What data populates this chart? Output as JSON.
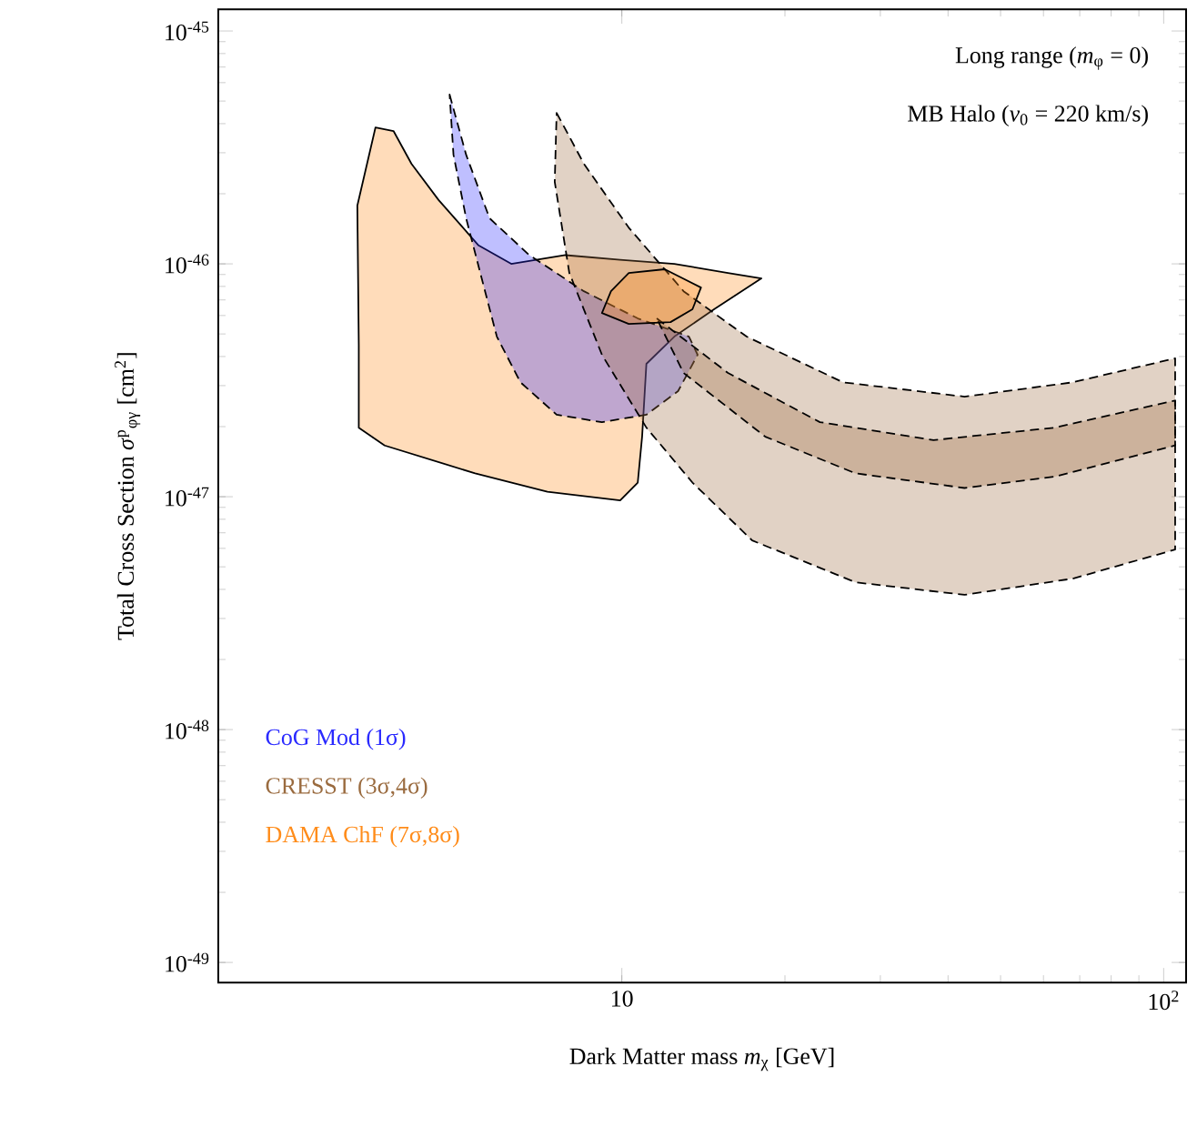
{
  "chart_data": {
    "type": "area",
    "log": "xy",
    "xlabel": "Dark Matter mass  *m*$_{χ}$  [GeV]",
    "ylabel": "Total Cross Section  *σ*$^{p}$$_{φγ}$ [cm$^{2}$]",
    "annotations": [
      "Long  range (*m*$_{φ}$ = 0)",
      "MB Halo (*v*$_{0}$ = 220 km/s)"
    ],
    "xlim": [
      1.8,
      110
    ],
    "ylim": [
      8.2e-50,
      1.24e-45
    ],
    "xticks": [
      {
        "value": 10,
        "label": "10"
      },
      {
        "value": 100,
        "label": "10$^{2}$"
      }
    ],
    "yticks": [
      {
        "value": 1e-49,
        "label": "10$^{-49}$"
      },
      {
        "value": 1e-48,
        "label": "10$^{-48}$"
      },
      {
        "value": 1e-47,
        "label": "10$^{-47}$"
      },
      {
        "value": 1e-46,
        "label": "10$^{-46}$"
      },
      {
        "value": 1e-45,
        "label": "10$^{-45}$"
      }
    ],
    "legend": "bottom left",
    "grid": false,
    "series": [
      {
        "color": "#ff8c1a",
        "line_style": "solid",
        "x": [
          3.25,
          3.51,
          3.79,
          4.09,
          4.59,
          5.44,
          6.25,
          7.87,
          9.93,
          12.5,
          15.7,
          18.1,
          14.8,
          12.5,
          11.1,
          10.9,
          10.7,
          9.93,
          7.29,
          5.36,
          3.65,
          3.27,
          3.27
        ],
        "values": [
          1.78e-46,
          3.85e-46,
          3.72e-46,
          2.69e-46,
          1.88e-46,
          1.2e-46,
          1e-46,
          1.09e-46,
          1.04e-46,
          1e-46,
          9.14e-47,
          8.66e-47,
          6.38e-47,
          4.87e-47,
          3.72e-47,
          1.81e-47,
          1.15e-47,
          9.64e-48,
          1.05e-47,
          1.26e-47,
          1.66e-47,
          1.98e-47,
          4.45e-47
        ]
      },
      {
        "name": "CoG Mod  (1σ)",
        "color": "#2a2aff",
        "line_style": "dashed",
        "x": [
          4.81,
          5.16,
          5.7,
          6.75,
          8.51,
          10.7,
          13.3,
          13.8,
          12.7,
          11.1,
          9.19,
          7.58,
          6.5,
          5.88,
          5.48,
          5.16,
          4.89
        ],
        "values": [
          5.33e-46,
          2.94e-46,
          1.57e-46,
          1.09e-46,
          7.63e-47,
          5.83e-47,
          4.87e-47,
          4.07e-47,
          2.84e-47,
          2.25e-47,
          2.09e-47,
          2.25e-47,
          3.1e-47,
          4.87e-47,
          9.14e-47,
          1.57e-46,
          2.94e-46
        ]
      },
      {
        "name": "CRESST  (3σ,4σ)",
        "color": "#9a6b3f",
        "line_style": "dashed",
        "x": [
          7.58,
          8.51,
          10.3,
          13.0,
          17.0,
          25.6,
          42.9,
          68.0,
          105,
          105,
          68.0,
          42.9,
          27.0,
          17.4,
          13.5,
          11.1,
          9.19,
          8.0,
          7.52
        ],
        "values": [
          4.45e-46,
          2.69e-46,
          1.43e-46,
          7.63e-47,
          4.87e-47,
          3.1e-47,
          2.69e-47,
          3.1e-47,
          3.93e-47,
          5.93e-48,
          4.45e-48,
          3.79e-48,
          4.29e-48,
          6.49e-48,
          1.15e-47,
          1.98e-47,
          4.07e-47,
          9.14e-47,
          2.25e-46
        ]
      },
      {
        "color": "#9a6b3f",
        "line_style": "dashed",
        "x": [
          11.6,
          15.7,
          23.2,
          37.6,
          63.0,
          105,
          105,
          63.0,
          42.9,
          27.0,
          18.4,
          13.0
        ],
        "values": [
          5.83e-47,
          3.4e-47,
          2.09e-47,
          1.75e-47,
          1.98e-47,
          2.59e-47,
          1.66e-47,
          1.22e-47,
          1.09e-47,
          1.26e-47,
          1.81e-47,
          3.4e-47
        ]
      },
      {
        "name": "DAMA ChF (7σ,8σ)",
        "color": "#ff8c1a",
        "line_style": "solid",
        "x": [
          9.55,
          10.3,
          12.0,
          14.0,
          13.5,
          12.3,
          10.3,
          9.19
        ],
        "values": [
          7.63e-47,
          9.14e-47,
          9.48e-47,
          7.91e-47,
          6.38e-47,
          5.62e-47,
          5.52e-47,
          6.15e-47
        ]
      }
    ]
  }
}
